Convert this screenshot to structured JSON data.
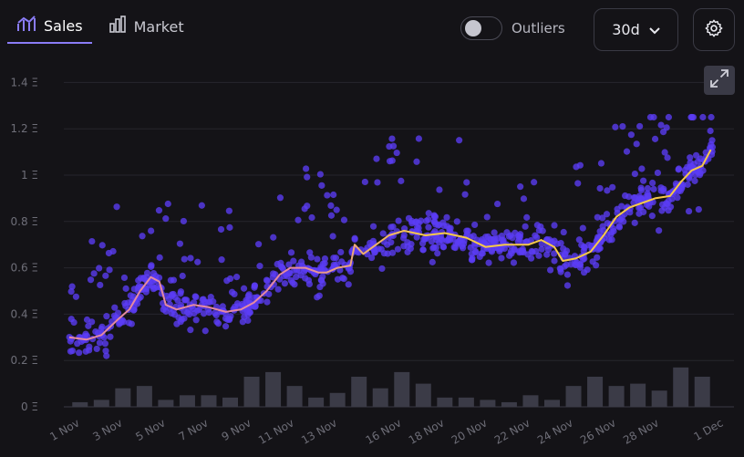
{
  "tabs": [
    {
      "label": "Sales",
      "icon": "sales-chart-icon",
      "active": true
    },
    {
      "label": "Market",
      "icon": "bar-chart-icon",
      "active": false
    }
  ],
  "outliers": {
    "label": "Outliers",
    "enabled": false
  },
  "range_select": {
    "value": "30d"
  },
  "colors": {
    "accent": "#8a7cf7",
    "dot": "#5b3cf5",
    "line_early": "#e58aa0",
    "line_late": "#f7c948",
    "bar": "#3b3b47",
    "grid": "#26262d"
  },
  "chart_data": {
    "type": "scatter",
    "y_unit": "Ξ",
    "ylim": [
      0,
      1.4
    ],
    "yticks": [
      "0 Ξ",
      "0.2 Ξ",
      "0.4 Ξ",
      "0.6 Ξ",
      "0.8 Ξ",
      "1 Ξ",
      "1.2 Ξ",
      "1.4 Ξ"
    ],
    "ytick_values": [
      0,
      0.2,
      0.4,
      0.6,
      0.8,
      1.0,
      1.2,
      1.4
    ],
    "x_ticks": [
      "1 Nov",
      "3 Nov",
      "5 Nov",
      "7 Nov",
      "9 Nov",
      "11 Nov",
      "13 Nov",
      "16 Nov",
      "18 Nov",
      "20 Nov",
      "22 Nov",
      "24 Nov",
      "26 Nov",
      "28 Nov",
      "1 Dec"
    ],
    "x_tick_days": [
      0,
      2,
      4,
      6,
      8,
      10,
      12,
      15,
      17,
      19,
      21,
      23,
      25,
      27,
      30
    ],
    "grid": true,
    "volume_bars": [
      0.02,
      0.03,
      0.08,
      0.09,
      0.03,
      0.05,
      0.05,
      0.04,
      0.13,
      0.15,
      0.09,
      0.04,
      0.06,
      0.13,
      0.08,
      0.15,
      0.1,
      0.04,
      0.04,
      0.03,
      0.02,
      0.05,
      0.03,
      0.09,
      0.13,
      0.09,
      0.1,
      0.07,
      0.17,
      0.13
    ],
    "average_line": [
      [
        0.0,
        0.3
      ],
      [
        0.8,
        0.29
      ],
      [
        1.5,
        0.31
      ],
      [
        2.3,
        0.38
      ],
      [
        2.8,
        0.42
      ],
      [
        3.3,
        0.5
      ],
      [
        3.8,
        0.56
      ],
      [
        4.2,
        0.54
      ],
      [
        4.5,
        0.44
      ],
      [
        5.0,
        0.42
      ],
      [
        5.8,
        0.44
      ],
      [
        6.5,
        0.43
      ],
      [
        7.3,
        0.41
      ],
      [
        8.0,
        0.42
      ],
      [
        8.6,
        0.45
      ],
      [
        9.2,
        0.5
      ],
      [
        9.8,
        0.57
      ],
      [
        10.3,
        0.6
      ],
      [
        11.0,
        0.6
      ],
      [
        11.6,
        0.58
      ],
      [
        12.0,
        0.58
      ],
      [
        12.5,
        0.6
      ],
      [
        13.1,
        0.61
      ],
      [
        13.3,
        0.7
      ],
      [
        13.7,
        0.66
      ],
      [
        14.3,
        0.7
      ],
      [
        14.9,
        0.74
      ],
      [
        15.6,
        0.76
      ],
      [
        16.6,
        0.74
      ],
      [
        17.5,
        0.75
      ],
      [
        18.5,
        0.73
      ],
      [
        19.4,
        0.69
      ],
      [
        20.3,
        0.7
      ],
      [
        21.4,
        0.7
      ],
      [
        22.0,
        0.72
      ],
      [
        22.6,
        0.69
      ],
      [
        23.0,
        0.63
      ],
      [
        23.6,
        0.64
      ],
      [
        24.3,
        0.67
      ],
      [
        24.9,
        0.74
      ],
      [
        25.5,
        0.82
      ],
      [
        26.1,
        0.86
      ],
      [
        26.7,
        0.88
      ],
      [
        27.3,
        0.9
      ],
      [
        28.0,
        0.91
      ],
      [
        28.5,
        0.97
      ],
      [
        29.0,
        1.02
      ],
      [
        29.5,
        1.04
      ],
      [
        29.9,
        1.11
      ]
    ],
    "sales_note": "daily price cloud with outliers up to 1.25 Ξ"
  }
}
